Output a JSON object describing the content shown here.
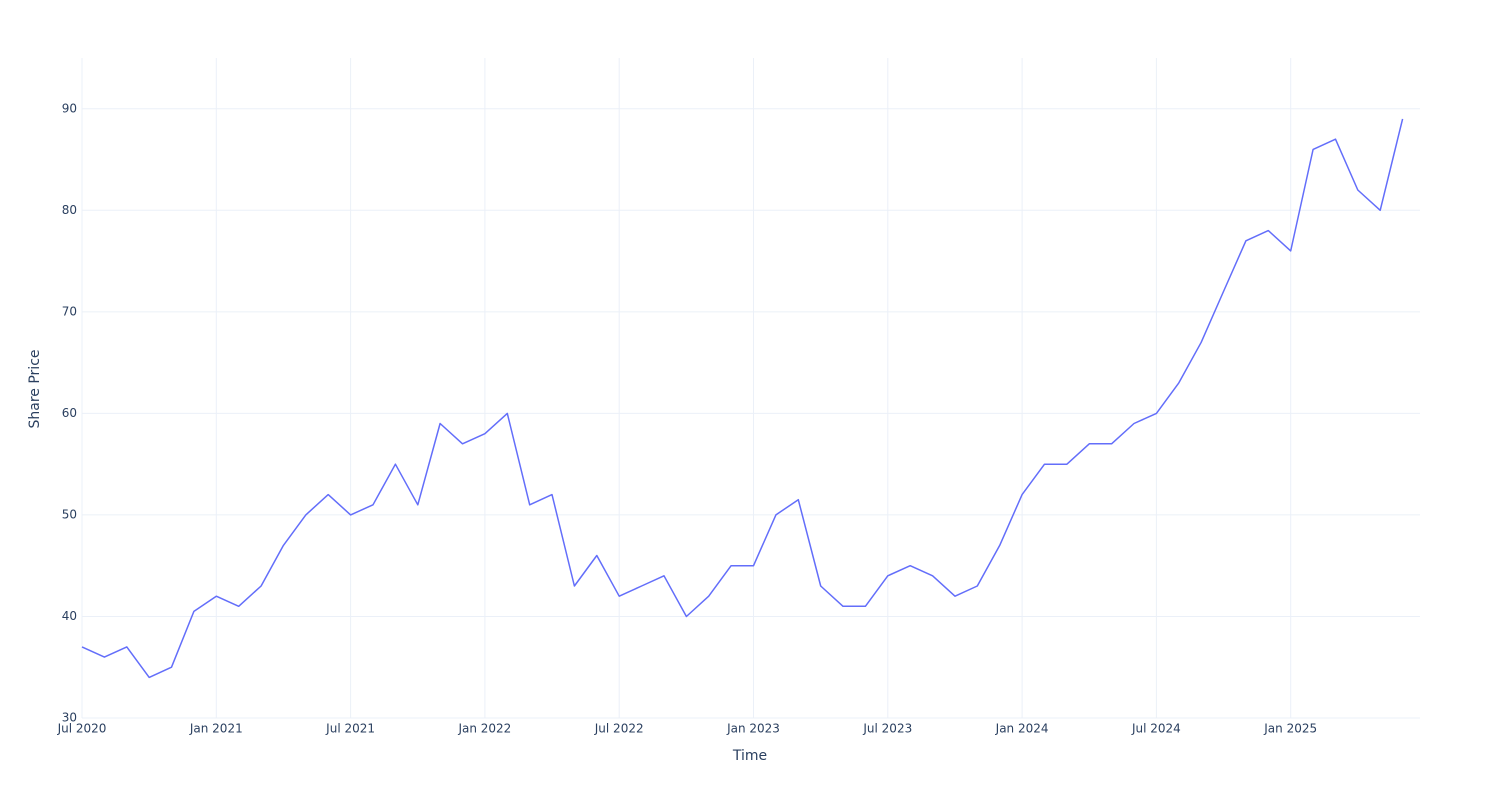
{
  "chart_data": {
    "type": "line",
    "xlabel": "Time",
    "ylabel": "Share Price",
    "x": [
      "2020-07",
      "2020-08",
      "2020-09",
      "2020-10",
      "2020-11",
      "2020-12",
      "2021-01",
      "2021-02",
      "2021-03",
      "2021-04",
      "2021-05",
      "2021-06",
      "2021-07",
      "2021-08",
      "2021-09",
      "2021-10",
      "2021-11",
      "2021-12",
      "2022-01",
      "2022-02",
      "2022-03",
      "2022-04",
      "2022-05",
      "2022-06",
      "2022-07",
      "2022-08",
      "2022-09",
      "2022-10",
      "2022-11",
      "2022-12",
      "2023-01",
      "2023-02",
      "2023-03",
      "2023-04",
      "2023-05",
      "2023-06",
      "2023-07",
      "2023-08",
      "2023-09",
      "2023-10",
      "2023-11",
      "2023-12",
      "2024-01",
      "2024-02",
      "2024-03",
      "2024-04",
      "2024-05",
      "2024-06",
      "2024-07",
      "2024-08",
      "2024-09",
      "2024-10",
      "2024-11",
      "2024-12",
      "2025-01",
      "2025-02",
      "2025-03",
      "2025-04",
      "2025-05",
      "2025-06"
    ],
    "values": [
      37,
      36,
      37,
      34,
      35,
      40.5,
      42,
      41,
      43,
      47,
      50,
      52,
      50,
      51,
      55,
      51,
      59,
      57,
      58,
      60,
      51,
      52,
      43,
      46,
      42,
      43,
      44,
      40,
      42,
      45,
      45,
      50,
      51.5,
      43,
      41,
      41,
      44,
      45,
      44,
      42,
      43,
      47,
      52,
      55,
      55,
      57,
      57,
      59,
      60,
      63,
      67,
      72,
      77,
      78,
      76,
      86,
      87,
      82,
      80,
      89
    ],
    "color": "#636efa",
    "xlim": [
      "2020-07",
      "2025-07"
    ],
    "xticks": [
      {
        "value": "2020-07",
        "label": "Jul 2020"
      },
      {
        "value": "2021-01",
        "label": "Jan 2021"
      },
      {
        "value": "2021-07",
        "label": "Jul 2021"
      },
      {
        "value": "2022-01",
        "label": "Jan 2022"
      },
      {
        "value": "2022-07",
        "label": "Jul 2022"
      },
      {
        "value": "2023-01",
        "label": "Jan 2023"
      },
      {
        "value": "2023-07",
        "label": "Jul 2023"
      },
      {
        "value": "2024-01",
        "label": "Jan 2024"
      },
      {
        "value": "2024-07",
        "label": "Jul 2024"
      },
      {
        "value": "2025-01",
        "label": "Jan 2025"
      }
    ],
    "ylim": [
      30,
      95
    ],
    "yticks": [
      30,
      40,
      50,
      60,
      70,
      80,
      90
    ],
    "grid": true
  }
}
